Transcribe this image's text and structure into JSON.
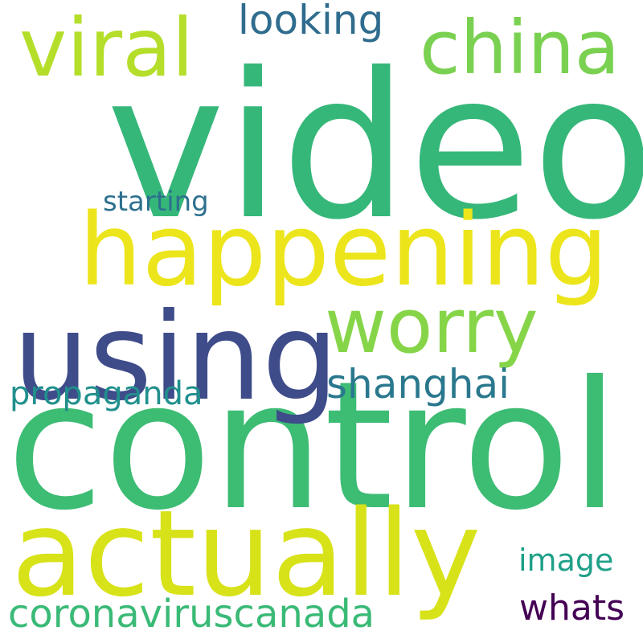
{
  "words": [
    {
      "text": "video",
      "color": "#35b779"
    },
    {
      "text": "control",
      "color": "#3dbc74"
    },
    {
      "text": "happening",
      "color": "#ece51b"
    },
    {
      "text": "actually",
      "color": "#d8e219"
    },
    {
      "text": "using",
      "color": "#3e4c8a"
    },
    {
      "text": "viral",
      "color": "#b5de2b"
    },
    {
      "text": "china",
      "color": "#7ad151"
    },
    {
      "text": "worry",
      "color": "#86d549"
    },
    {
      "text": "looking",
      "color": "#2f6c8e"
    },
    {
      "text": "shanghai",
      "color": "#2a788e"
    },
    {
      "text": "propaganda",
      "color": "#21908d"
    },
    {
      "text": "coronaviruscanada",
      "color": "#3aba76"
    },
    {
      "text": "starting",
      "color": "#2d708e"
    },
    {
      "text": "image",
      "color": "#1fa088"
    },
    {
      "text": "whats",
      "color": "#440154"
    }
  ]
}
